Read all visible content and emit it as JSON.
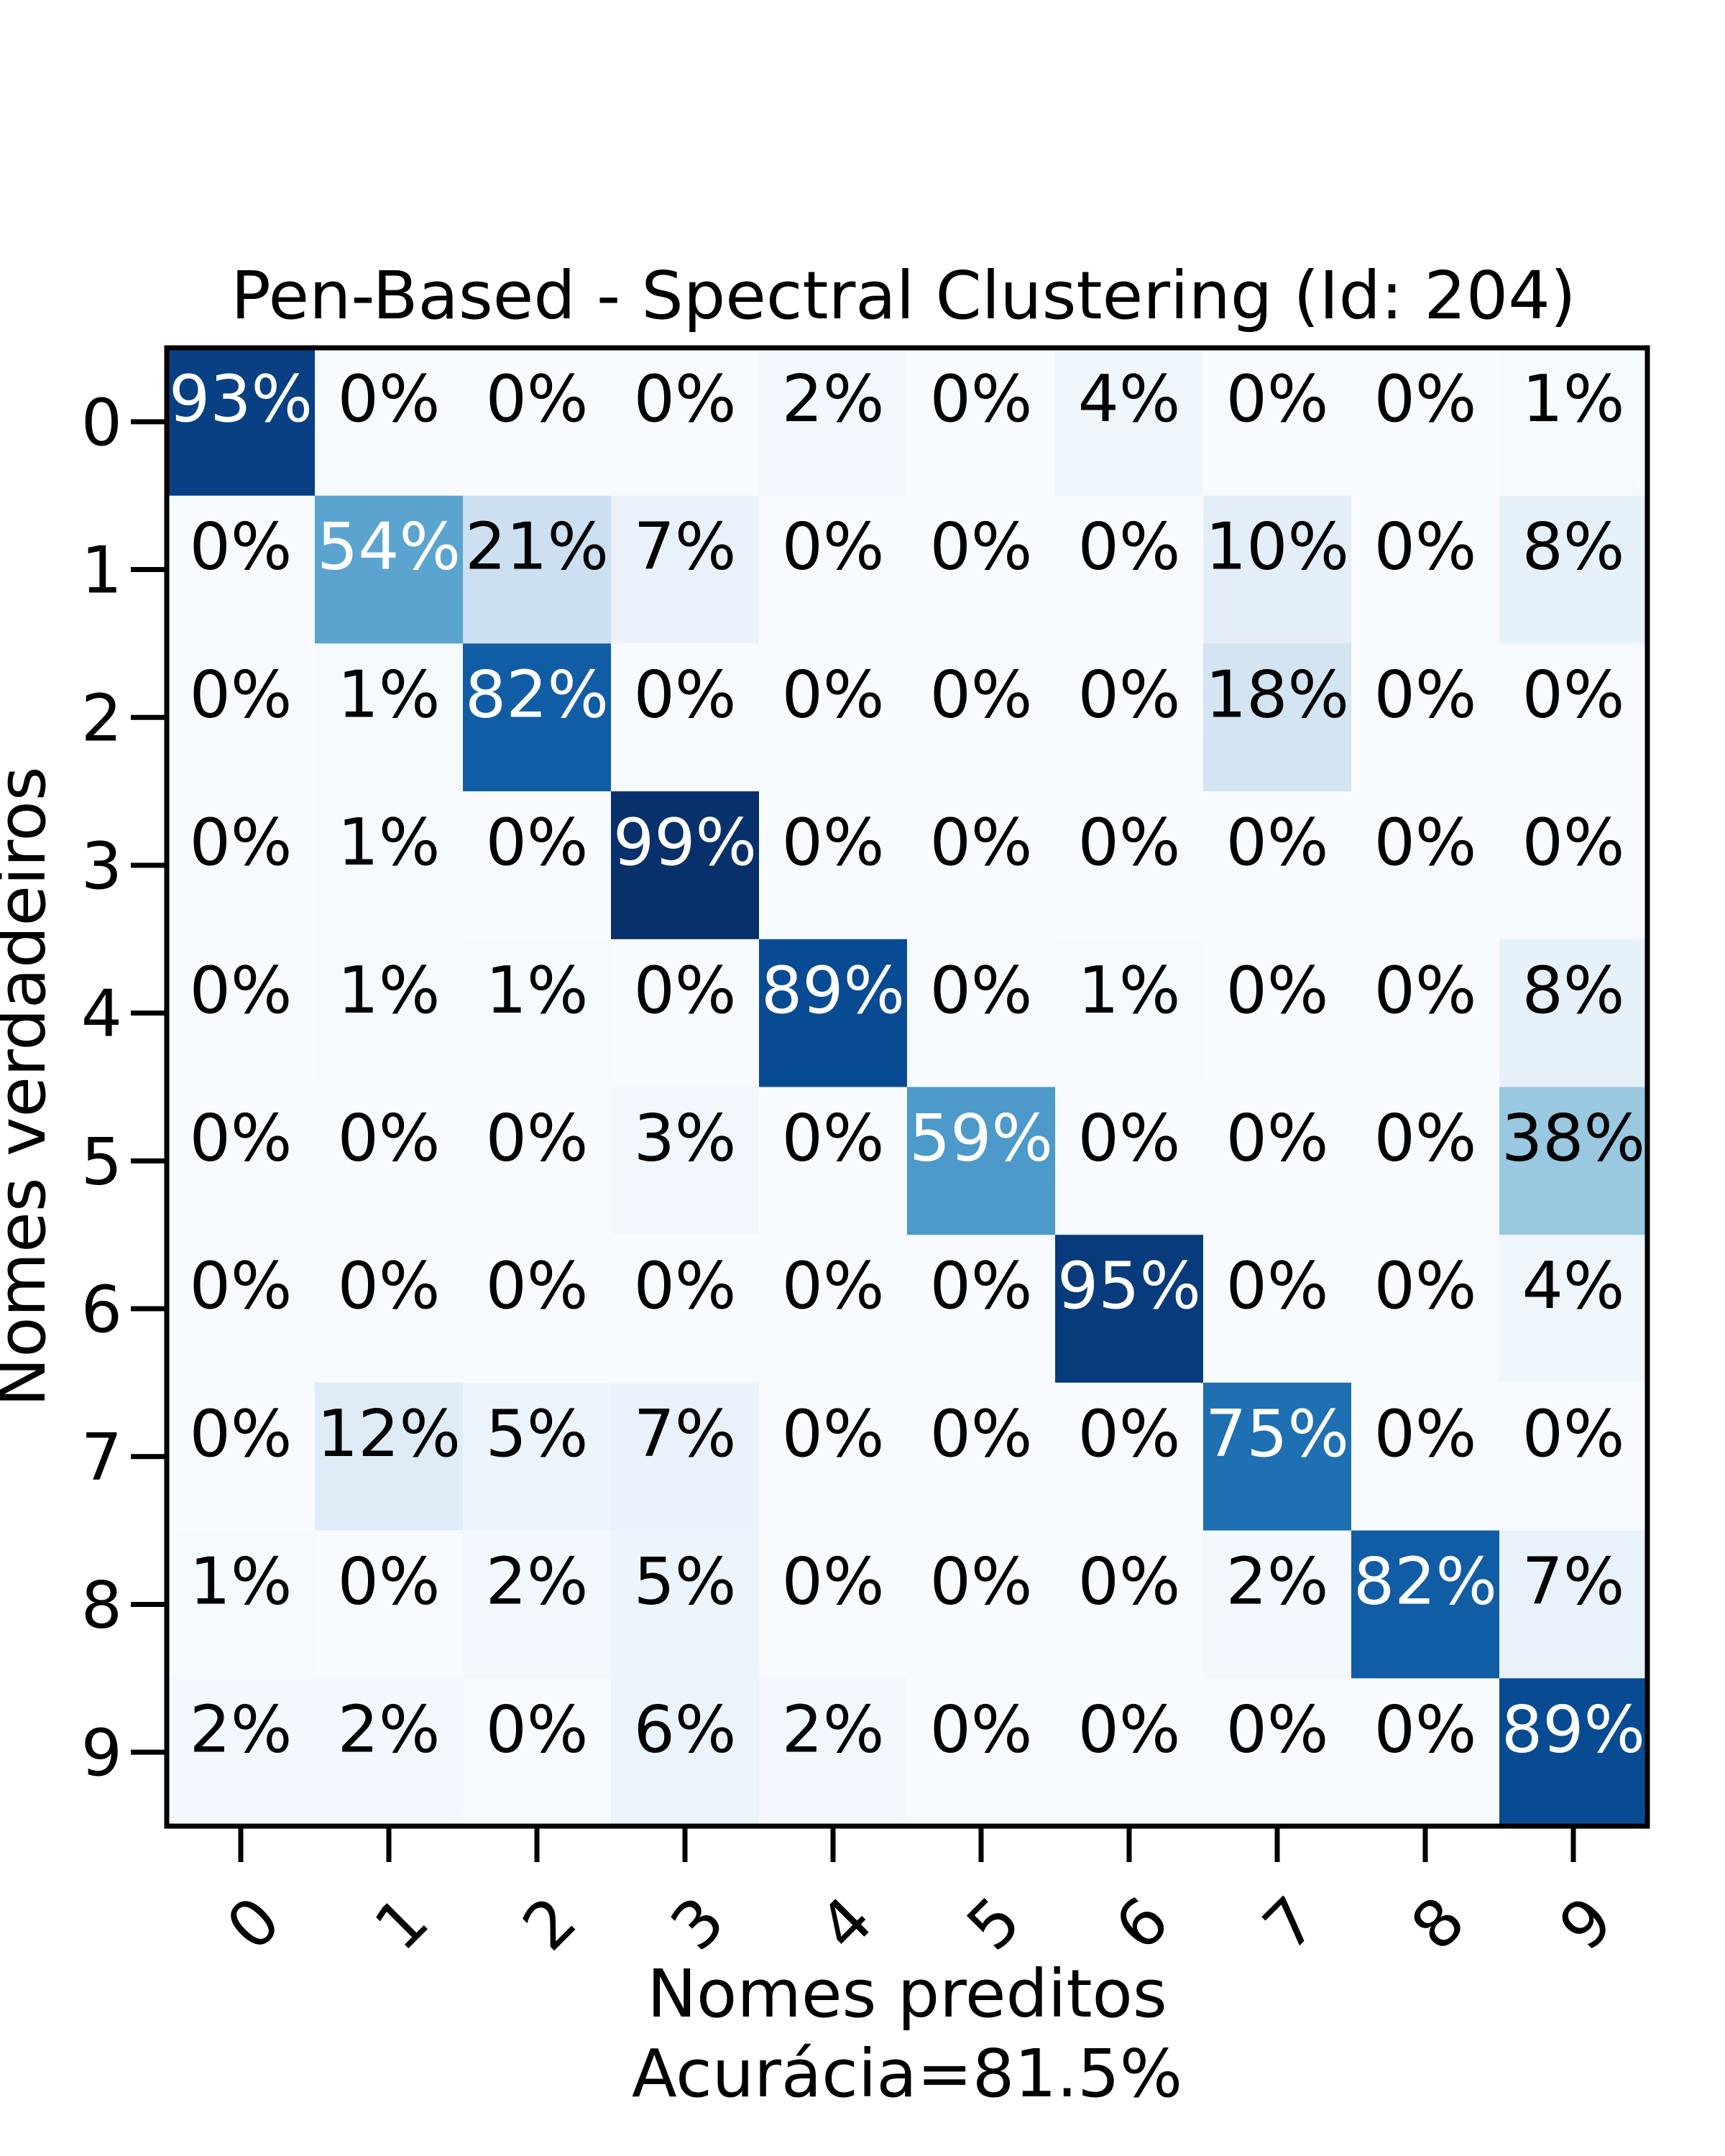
{
  "chart_data": {
    "type": "heatmap",
    "title": "Pen-Based - Spectral Clustering (Id: 204)",
    "xlabel": "Nomes preditos",
    "footer": "Acurácia=81.5%",
    "ylabel": "Nomes verdadeiros",
    "x_categories": [
      "0",
      "1",
      "2",
      "3",
      "4",
      "5",
      "6",
      "7",
      "8",
      "9"
    ],
    "y_categories": [
      "0",
      "1",
      "2",
      "3",
      "4",
      "5",
      "6",
      "7",
      "8",
      "9"
    ],
    "value_suffix": "%",
    "colormap": "Blues",
    "values": [
      [
        93,
        0,
        0,
        0,
        2,
        0,
        4,
        0,
        0,
        1
      ],
      [
        0,
        54,
        21,
        7,
        0,
        0,
        0,
        10,
        0,
        8
      ],
      [
        0,
        1,
        82,
        0,
        0,
        0,
        0,
        18,
        0,
        0
      ],
      [
        0,
        1,
        0,
        99,
        0,
        0,
        0,
        0,
        0,
        0
      ],
      [
        0,
        1,
        1,
        0,
        89,
        0,
        1,
        0,
        0,
        8
      ],
      [
        0,
        0,
        0,
        3,
        0,
        59,
        0,
        0,
        0,
        38
      ],
      [
        0,
        0,
        0,
        0,
        0,
        0,
        95,
        0,
        0,
        4
      ],
      [
        0,
        12,
        5,
        7,
        0,
        0,
        0,
        75,
        0,
        0
      ],
      [
        1,
        0,
        2,
        5,
        0,
        0,
        0,
        2,
        82,
        7
      ],
      [
        2,
        2,
        0,
        6,
        2,
        0,
        0,
        0,
        0,
        89
      ]
    ]
  }
}
